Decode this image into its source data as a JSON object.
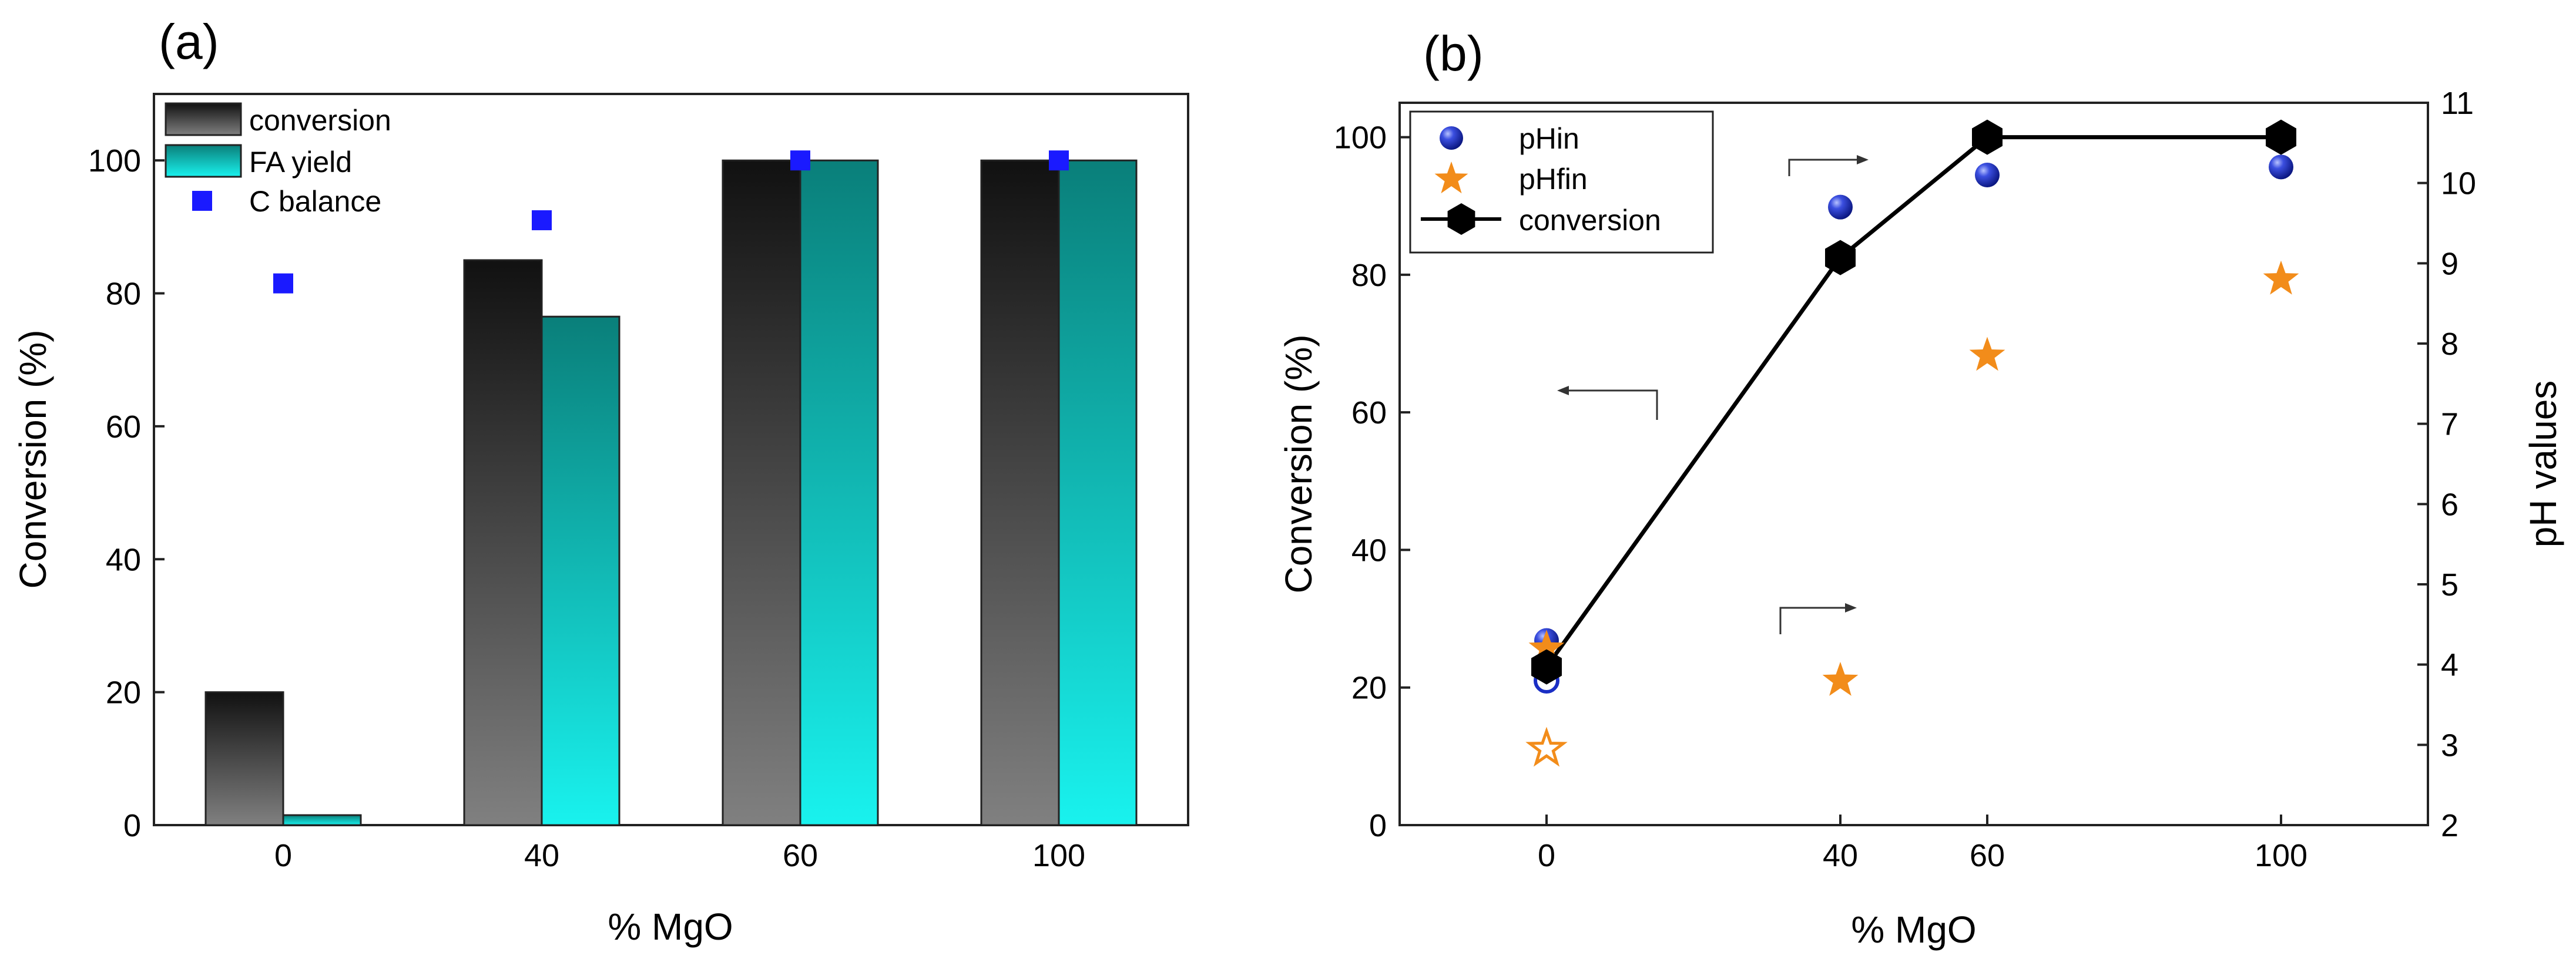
{
  "chart_data": [
    {
      "panel_label": "(a)",
      "type": "bar",
      "xlabel": "% MgO",
      "ylabel": "Conversion (%)",
      "categories": [
        "0",
        "40",
        "60",
        "100"
      ],
      "ylim": [
        0,
        110
      ],
      "yticks": [
        "0",
        "20",
        "40",
        "60",
        "80",
        "100"
      ],
      "series": [
        {
          "name": "conversion",
          "kind": "bar",
          "color_top": "#111111",
          "color_bottom": "#808080",
          "values": [
            20,
            85,
            100,
            100
          ]
        },
        {
          "name": "FA yield",
          "kind": "bar",
          "color_top": "#0a7f7a",
          "color_bottom": "#19f2ee",
          "values": [
            1.5,
            76.5,
            100,
            100
          ]
        },
        {
          "name": "C balance",
          "kind": "square",
          "color": "#1a1aff",
          "values": [
            81.5,
            91,
            100,
            100
          ]
        }
      ],
      "legend_placement": "top-left"
    },
    {
      "panel_label": "(b)",
      "type": "scatter",
      "xlabel": "% MgO",
      "ylabel": "Conversion (%)",
      "y2label": "pH values",
      "x": [
        0,
        40,
        60,
        100
      ],
      "xticks": [
        "0",
        "40",
        "60",
        "100"
      ],
      "xlim": [
        -20,
        120
      ],
      "ylim": [
        0,
        105
      ],
      "yticks": [
        "0",
        "20",
        "40",
        "60",
        "80",
        "100"
      ],
      "y2lim": [
        2,
        11
      ],
      "y2ticks": [
        "2",
        "3",
        "4",
        "5",
        "6",
        "7",
        "8",
        "9",
        "10",
        "11"
      ],
      "series": [
        {
          "name": "pHin",
          "axis": "right",
          "kind": "sphere",
          "color": "#1a2ec4",
          "values": [
            4.3,
            9.7,
            10.1,
            10.2
          ]
        },
        {
          "name": "pHfin",
          "axis": "right",
          "kind": "star",
          "color": "#f28c1a",
          "values": [
            4.2,
            3.8,
            7.85,
            8.8
          ]
        },
        {
          "name": "conversion",
          "axis": "left",
          "kind": "line-hexagon",
          "color": "#000000",
          "values": [
            23,
            82.5,
            100,
            100
          ]
        }
      ],
      "open_points": [
        {
          "series": "pHin",
          "axis": "right",
          "x": 0,
          "y": 3.8,
          "color": "#1a2ec4"
        },
        {
          "series": "pHfin",
          "axis": "right",
          "x": 0,
          "y": 2.95,
          "color": "#f28c1a"
        }
      ],
      "legend_placement": "top-left"
    }
  ]
}
